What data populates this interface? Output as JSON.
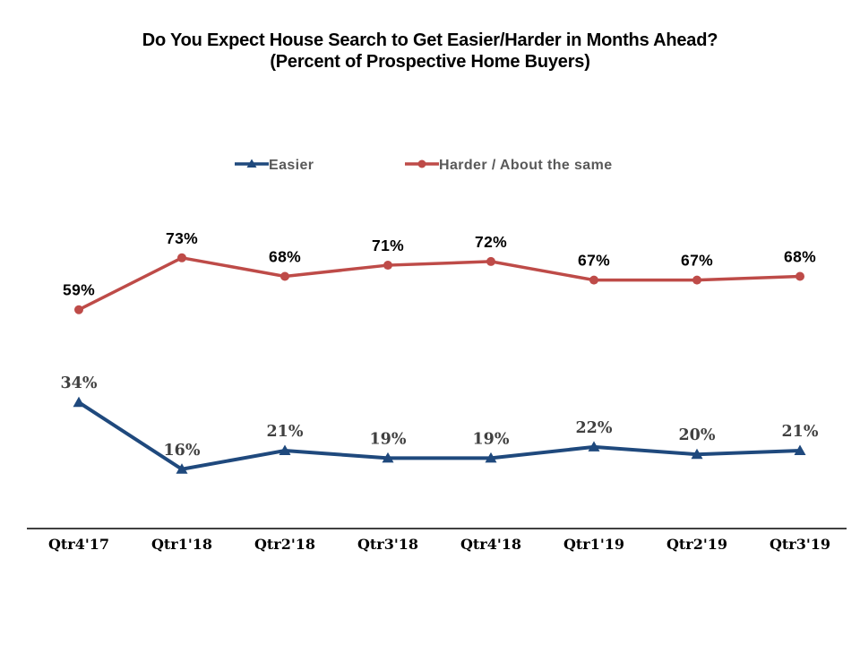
{
  "page": {
    "background_color": "#FFFFFF"
  },
  "chart_data": {
    "type": "line",
    "title": "Do You Expect House Search to Get Easier/Harder in Months Ahead? (Percent of Prospective Home Buyers)",
    "title_lines": [
      "Do You Expect House Search to Get Easier/Harder in Months Ahead?",
      "(Percent of Prospective Home Buyers)"
    ],
    "categories": [
      "Qtr4'17",
      "Qtr1'18",
      "Qtr2'18",
      "Qtr3'18",
      "Qtr4'18",
      "Qtr1'19",
      "Qtr2'19",
      "Qtr3'19"
    ],
    "series": [
      {
        "name": "Easier",
        "color": "#1F497D",
        "marker": "triangle",
        "label_color": "#404040",
        "values": [
          34,
          16,
          21,
          19,
          19,
          22,
          20,
          21
        ]
      },
      {
        "name": "Harder / About the same",
        "color": "#BE4B48",
        "marker": "circle",
        "label_color": "#000000",
        "values": [
          59,
          73,
          68,
          71,
          72,
          67,
          67,
          68
        ]
      }
    ],
    "unit": "%",
    "xlabel": "",
    "ylabel": "",
    "ylim": [
      0,
      80
    ],
    "grid": false,
    "y_axis_visible": false,
    "x_axis_line_color": "#000000",
    "legend_position": "top",
    "legend_text_color": "#595959",
    "data_labels_visible": true
  }
}
